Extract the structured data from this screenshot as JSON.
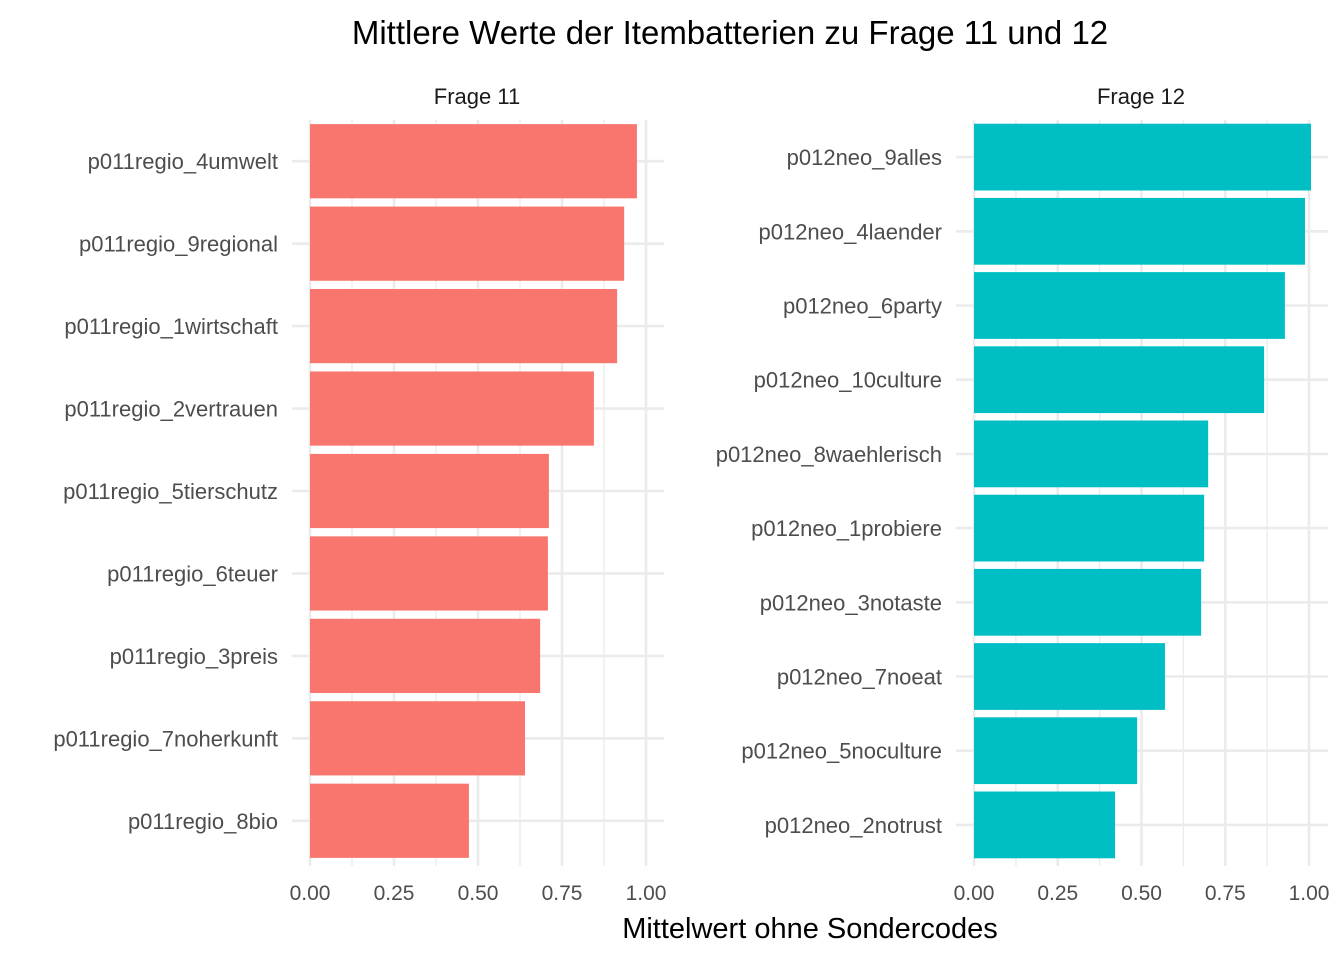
{
  "chart_data": {
    "type": "bar",
    "orientation": "horizontal",
    "title": "Mittlere Werte der Itembatterien zu Frage 11 und 12",
    "xlabel": "Mittelwert ohne Sondercodes",
    "ylabel": "",
    "grid": true,
    "legend": "none",
    "panels": [
      {
        "strip_label": "Frage 11",
        "color": "#F8766D",
        "xlim": [
          0,
          1.0
        ],
        "xticks": [
          "0.00",
          "0.25",
          "0.50",
          "0.75",
          "1.00"
        ],
        "categories": [
          "p011regio_4umwelt",
          "p011regio_9regional",
          "p011regio_1wirtschaft",
          "p011regio_2vertrauen",
          "p011regio_5tierschutz",
          "p011regio_6teuer",
          "p011regio_3preis",
          "p011regio_7noherkunft",
          "p011regio_8bio"
        ],
        "values": [
          0.973,
          0.935,
          0.914,
          0.845,
          0.711,
          0.708,
          0.685,
          0.64,
          0.473
        ]
      },
      {
        "strip_label": "Frage 12",
        "color": "#00BFC4",
        "xlim": [
          0,
          1.0
        ],
        "xticks": [
          "0.00",
          "0.25",
          "0.50",
          "0.75",
          "1.00"
        ],
        "categories": [
          "p012neo_9alles",
          "p012neo_4laender",
          "p012neo_6party",
          "p012neo_10culture",
          "p012neo_8waehlerisch",
          "p012neo_1probiere",
          "p012neo_3notaste",
          "p012neo_7noeat",
          "p012neo_5noculture",
          "p012neo_2notrust"
        ],
        "values": [
          1.006,
          0.988,
          0.928,
          0.866,
          0.699,
          0.687,
          0.678,
          0.57,
          0.487,
          0.421
        ]
      }
    ]
  }
}
